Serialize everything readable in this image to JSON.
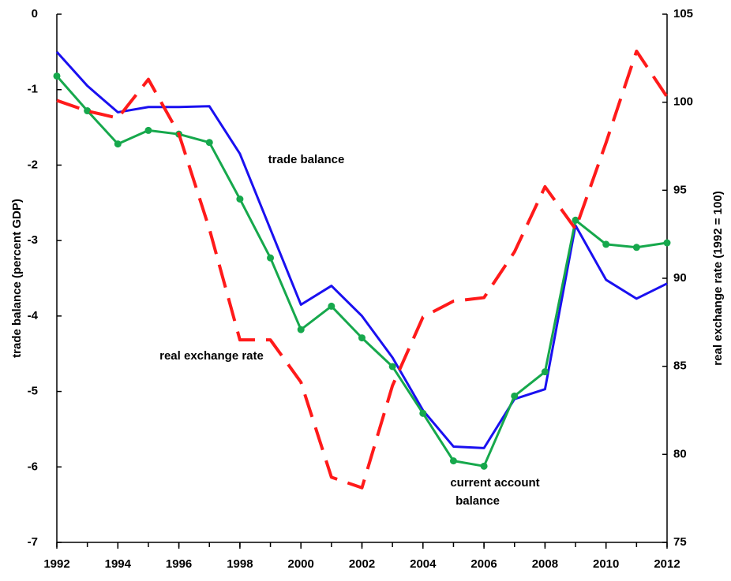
{
  "chart_data": {
    "type": "line",
    "x": [
      1992,
      1993,
      1994,
      1995,
      1996,
      1997,
      1998,
      1999,
      2000,
      2001,
      2002,
      2003,
      2004,
      2005,
      2006,
      2007,
      2008,
      2009,
      2010,
      2011,
      2012
    ],
    "series": [
      {
        "name": "trade balance",
        "color": "#1a10f0",
        "values": [
          -0.5,
          -0.95,
          -1.3,
          -1.23,
          -1.23,
          -1.22,
          -1.85,
          -2.85,
          -3.85,
          -3.6,
          -4.0,
          -4.55,
          -5.25,
          -5.73,
          -5.75,
          -5.1,
          -4.97,
          -2.8,
          -3.52,
          -3.77,
          -3.57
        ]
      },
      {
        "name": "current account balance",
        "color": "#16a84c",
        "markers": true,
        "values": [
          -0.82,
          -1.28,
          -1.72,
          -1.54,
          -1.59,
          -1.7,
          -2.45,
          -3.23,
          -4.18,
          -3.87,
          -4.29,
          -4.67,
          -5.29,
          -5.92,
          -5.99,
          -5.06,
          -4.74,
          -2.73,
          -3.05,
          -3.09,
          -3.03
        ]
      },
      {
        "name": "real exchange rate",
        "color": "#ff1a1a",
        "dashed": true,
        "axis": "y2",
        "values": [
          100.1,
          99.5,
          99.1,
          101.3,
          98.2,
          92.8,
          86.5,
          86.5,
          84.1,
          78.7,
          78.1,
          83.9,
          87.8,
          88.7,
          88.9,
          91.5,
          95.2,
          92.8,
          97.7,
          102.9,
          100.3
        ]
      }
    ],
    "annotations": [
      "trade balance",
      "real exchange rate",
      "current account",
      "balance"
    ],
    "y_label": "trade balance (percent GDP)",
    "y2_label": "real exchange rate (1992 = 100)",
    "xlim": [
      1992,
      2012
    ],
    "xticks": [
      1992,
      1994,
      1996,
      1998,
      2000,
      2002,
      2004,
      2006,
      2008,
      2010,
      2012
    ],
    "ylim": [
      -7,
      0
    ],
    "yticks": [
      0,
      -1,
      -2,
      -3,
      -4,
      -5,
      -6,
      -7
    ],
    "y2lim": [
      75,
      105
    ],
    "y2ticks": [
      75,
      80,
      85,
      90,
      95,
      100,
      105
    ],
    "grid": false
  }
}
